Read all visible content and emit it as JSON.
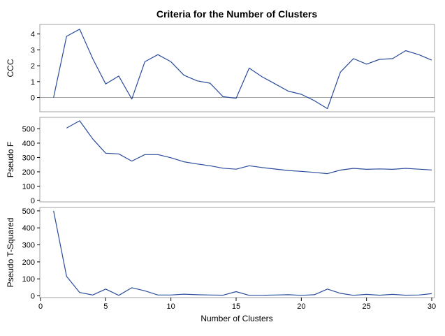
{
  "colors": {
    "line": "#2a4b9b",
    "frame": "#a0a0a0",
    "ref_line": "#a0a0a0",
    "background": "#ffffff"
  },
  "chart_data": {
    "type": "line",
    "title": "Criteria for the Number of Clusters",
    "xlabel": "Number of Clusters",
    "xlim": [
      0,
      30
    ],
    "xticks": [
      0,
      5,
      10,
      15,
      20,
      25,
      30
    ],
    "grid": false,
    "panels": [
      {
        "ylabel": "CCC",
        "ylim": [
          -0.9,
          4.6
        ],
        "yticks": [
          0,
          1,
          2,
          3,
          4
        ],
        "reference_line_y": 0,
        "series": [
          {
            "x": [
              1,
              2,
              3,
              4,
              5,
              6,
              7,
              8,
              9,
              10,
              11,
              12,
              13,
              14,
              15,
              16,
              17,
              18,
              19,
              20,
              21,
              22,
              23,
              24,
              25,
              26,
              27,
              28,
              29,
              30
            ],
            "values": [
              0.0,
              3.85,
              4.3,
              2.45,
              0.85,
              1.35,
              -0.1,
              2.25,
              2.7,
              2.25,
              1.4,
              1.05,
              0.9,
              0.05,
              -0.05,
              1.85,
              1.3,
              0.85,
              0.4,
              0.2,
              -0.2,
              -0.7,
              1.6,
              2.45,
              2.1,
              2.4,
              2.45,
              2.95,
              2.7,
              2.35
            ]
          }
        ]
      },
      {
        "ylabel": "Pseudo F",
        "ylim": [
          -10,
          580
        ],
        "yticks": [
          0,
          100,
          200,
          300,
          400,
          500
        ],
        "series": [
          {
            "x": [
              2,
              3,
              4,
              5,
              6,
              7,
              8,
              9,
              10,
              11,
              12,
              13,
              14,
              15,
              16,
              17,
              18,
              19,
              20,
              21,
              22,
              23,
              24,
              25,
              26,
              27,
              28,
              29,
              30
            ],
            "values": [
              505,
              556,
              430,
              330,
              325,
              275,
              320,
              320,
              298,
              270,
              255,
              242,
              225,
              218,
              242,
              230,
              219,
              209,
              203,
              196,
              187,
              212,
              224,
              217,
              220,
              217,
              224,
              218,
              213
            ]
          }
        ]
      },
      {
        "ylabel": "Pseudo T-Squared",
        "ylim": [
          -10,
          520
        ],
        "yticks": [
          0,
          100,
          200,
          300,
          400,
          500
        ],
        "series": [
          {
            "x": [
              1,
              2,
              3,
              4,
              5,
              6,
              7,
              8,
              9,
              10,
              11,
              12,
              13,
              14,
              15,
              16,
              17,
              18,
              19,
              20,
              21,
              22,
              23,
              24,
              25,
              26,
              27,
              28,
              29,
              30
            ],
            "values": [
              500,
              115,
              20,
              5,
              40,
              3,
              48,
              30,
              5,
              5,
              10,
              7,
              5,
              4,
              25,
              3,
              3,
              5,
              7,
              3,
              7,
              40,
              15,
              3,
              9,
              4,
              9,
              4,
              5,
              13
            ]
          }
        ]
      }
    ]
  }
}
